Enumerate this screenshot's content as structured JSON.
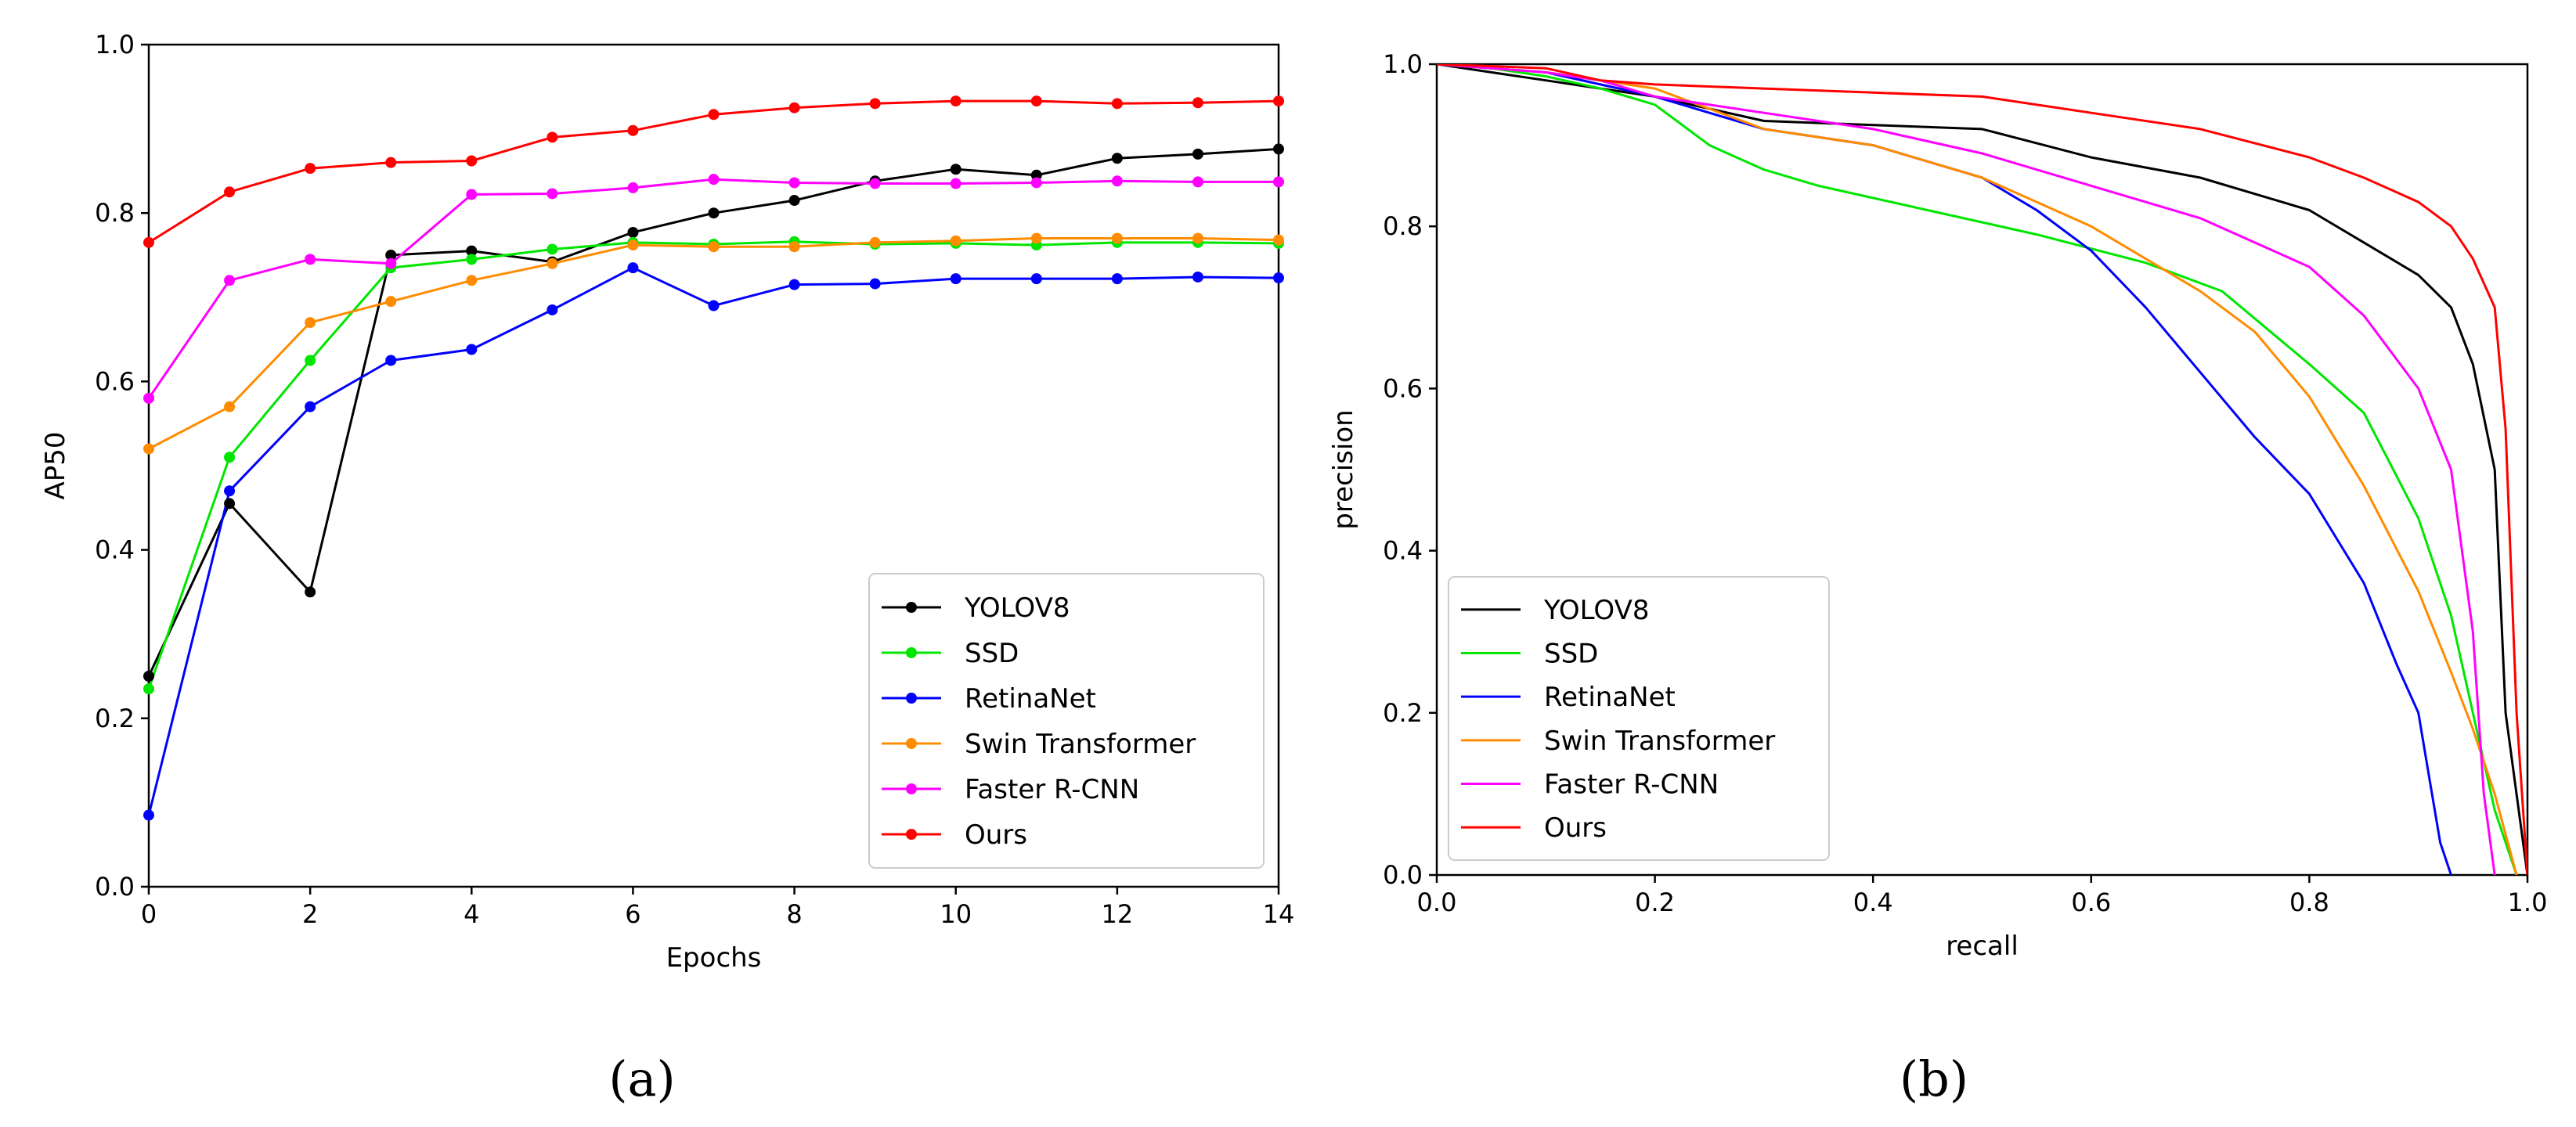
{
  "chart_data": [
    {
      "type": "line",
      "panel_label": "(a)",
      "xlabel": "Epochs",
      "ylabel": "AP50",
      "xlim": [
        0,
        14
      ],
      "ylim": [
        0.0,
        1.0
      ],
      "xticks": [
        "0",
        "2",
        "4",
        "6",
        "8",
        "10",
        "12",
        "14"
      ],
      "yticks": [
        "0.0",
        "0.2",
        "0.4",
        "0.6",
        "0.8",
        "1.0"
      ],
      "markers": true,
      "legend_position": "lower-right",
      "x": [
        0,
        1,
        2,
        3,
        4,
        5,
        6,
        7,
        8,
        9,
        10,
        11,
        12,
        13,
        14
      ],
      "series": [
        {
          "name": "YOLOV8",
          "color": "#000000",
          "values": [
            0.25,
            0.455,
            0.35,
            0.75,
            0.755,
            0.742,
            0.777,
            0.8,
            0.815,
            0.838,
            0.852,
            0.845,
            0.865,
            0.87,
            0.876
          ]
        },
        {
          "name": "SSD",
          "color": "#00e600",
          "values": [
            0.235,
            0.51,
            0.625,
            0.735,
            0.745,
            0.757,
            0.765,
            0.763,
            0.766,
            0.763,
            0.764,
            0.762,
            0.765,
            0.765,
            0.764
          ]
        },
        {
          "name": "RetinaNet",
          "color": "#0000ff",
          "values": [
            0.085,
            0.47,
            0.57,
            0.625,
            0.638,
            0.685,
            0.735,
            0.69,
            0.715,
            0.716,
            0.722,
            0.722,
            0.722,
            0.724,
            0.723
          ]
        },
        {
          "name": "Swin Transformer",
          "color": "#ff8c00",
          "values": [
            0.52,
            0.57,
            0.67,
            0.695,
            0.72,
            0.74,
            0.762,
            0.76,
            0.76,
            0.765,
            0.767,
            0.77,
            0.77,
            0.77,
            0.768
          ]
        },
        {
          "name": "Faster R-CNN",
          "color": "#ff00ff",
          "values": [
            0.58,
            0.72,
            0.745,
            0.74,
            0.822,
            0.823,
            0.83,
            0.84,
            0.836,
            0.835,
            0.835,
            0.836,
            0.838,
            0.837,
            0.837
          ]
        },
        {
          "name": "Ours",
          "color": "#ff0000",
          "values": [
            0.765,
            0.825,
            0.853,
            0.86,
            0.862,
            0.89,
            0.898,
            0.917,
            0.925,
            0.93,
            0.933,
            0.933,
            0.93,
            0.931,
            0.933
          ]
        }
      ]
    },
    {
      "type": "line",
      "panel_label": "(b)",
      "xlabel": "recall",
      "ylabel": "precision",
      "xlim": [
        0.0,
        1.0
      ],
      "ylim": [
        0.0,
        1.0
      ],
      "xticks": [
        "0.0",
        "0.2",
        "0.4",
        "0.6",
        "0.8",
        "1.0"
      ],
      "yticks": [
        "0.0",
        "0.2",
        "0.4",
        "0.6",
        "0.8",
        "1.0"
      ],
      "markers": false,
      "legend_position": "lower-left",
      "series": [
        {
          "name": "YOLOV8",
          "color": "#000000",
          "x": [
            0.0,
            0.05,
            0.1,
            0.15,
            0.2,
            0.3,
            0.4,
            0.5,
            0.6,
            0.7,
            0.8,
            0.85,
            0.9,
            0.93,
            0.95,
            0.97,
            0.98,
            1.0
          ],
          "y": [
            1.0,
            0.99,
            0.98,
            0.97,
            0.96,
            0.93,
            0.925,
            0.92,
            0.885,
            0.86,
            0.82,
            0.78,
            0.74,
            0.7,
            0.63,
            0.5,
            0.2,
            0.0
          ]
        },
        {
          "name": "SSD",
          "color": "#00e600",
          "x": [
            0.0,
            0.05,
            0.1,
            0.15,
            0.2,
            0.25,
            0.3,
            0.35,
            0.45,
            0.55,
            0.65,
            0.72,
            0.8,
            0.85,
            0.9,
            0.93,
            0.95,
            0.97,
            0.99
          ],
          "y": [
            1.0,
            0.995,
            0.985,
            0.97,
            0.95,
            0.9,
            0.87,
            0.85,
            0.82,
            0.79,
            0.755,
            0.72,
            0.63,
            0.57,
            0.44,
            0.32,
            0.2,
            0.08,
            0.0
          ]
        },
        {
          "name": "RetinaNet",
          "color": "#0000ff",
          "x": [
            0.0,
            0.05,
            0.1,
            0.15,
            0.2,
            0.3,
            0.4,
            0.5,
            0.55,
            0.6,
            0.65,
            0.7,
            0.75,
            0.8,
            0.85,
            0.88,
            0.9,
            0.91,
            0.92,
            0.93
          ],
          "y": [
            1.0,
            0.995,
            0.99,
            0.975,
            0.96,
            0.92,
            0.9,
            0.86,
            0.82,
            0.77,
            0.7,
            0.62,
            0.54,
            0.47,
            0.36,
            0.26,
            0.2,
            0.12,
            0.04,
            0.0
          ]
        },
        {
          "name": "Swin Transformer",
          "color": "#ff8c00",
          "x": [
            0.0,
            0.05,
            0.1,
            0.15,
            0.2,
            0.3,
            0.4,
            0.5,
            0.6,
            0.7,
            0.75,
            0.8,
            0.85,
            0.9,
            0.93,
            0.95,
            0.97,
            0.98,
            0.99
          ],
          "y": [
            1.0,
            0.995,
            0.99,
            0.98,
            0.97,
            0.92,
            0.9,
            0.86,
            0.8,
            0.72,
            0.67,
            0.59,
            0.48,
            0.35,
            0.25,
            0.18,
            0.1,
            0.05,
            0.0
          ]
        },
        {
          "name": "Faster R-CNN",
          "color": "#ff00ff",
          "x": [
            0.0,
            0.05,
            0.1,
            0.15,
            0.2,
            0.3,
            0.4,
            0.5,
            0.6,
            0.7,
            0.8,
            0.85,
            0.9,
            0.93,
            0.95,
            0.96,
            0.97
          ],
          "y": [
            1.0,
            0.995,
            0.99,
            0.98,
            0.96,
            0.94,
            0.92,
            0.89,
            0.85,
            0.81,
            0.75,
            0.69,
            0.6,
            0.5,
            0.3,
            0.1,
            0.0
          ]
        },
        {
          "name": "Ours",
          "color": "#ff0000",
          "x": [
            0.0,
            0.1,
            0.15,
            0.2,
            0.3,
            0.4,
            0.5,
            0.6,
            0.7,
            0.8,
            0.85,
            0.9,
            0.93,
            0.95,
            0.97,
            0.98,
            0.99,
            1.0
          ],
          "y": [
            1.0,
            0.995,
            0.98,
            0.975,
            0.97,
            0.965,
            0.96,
            0.94,
            0.92,
            0.885,
            0.86,
            0.83,
            0.8,
            0.76,
            0.7,
            0.55,
            0.2,
            0.0
          ]
        }
      ]
    }
  ]
}
